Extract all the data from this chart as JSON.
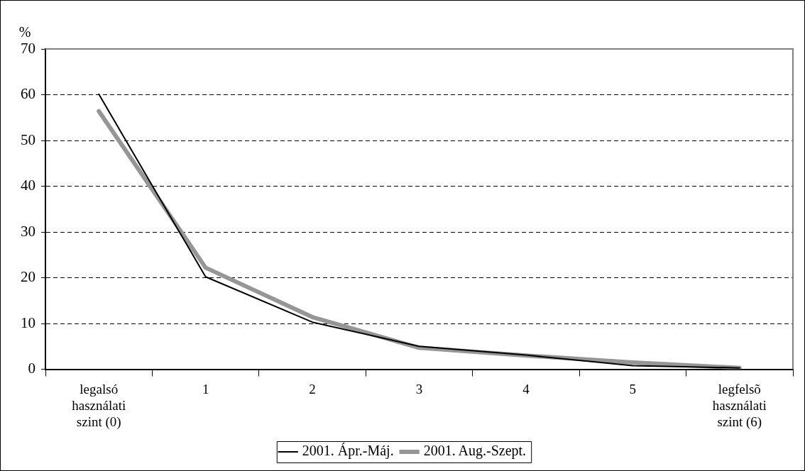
{
  "chart_data": {
    "type": "line",
    "ylabel": "%",
    "categories": [
      "legalsó\nhasználati\nszint (0)",
      "1",
      "2",
      "3",
      "4",
      "5",
      "legfelsõ\nhasználati\nszint (6)"
    ],
    "series": [
      {
        "name": "2001. Ápr.-Máj.",
        "color": "#000000",
        "values": [
          60.1,
          20.2,
          10.3,
          5.0,
          3.1,
          0.8,
          0.3
        ]
      },
      {
        "name": "2001. Aug.-Szept.",
        "color": "#969696",
        "values": [
          56.4,
          22.2,
          11.4,
          4.7,
          3.0,
          1.5,
          0.3
        ]
      }
    ],
    "ylim": [
      0,
      70
    ],
    "yticks": [
      0,
      10,
      20,
      30,
      40,
      50,
      60,
      70
    ],
    "grid": "y",
    "legend": "bottom",
    "marker": "none",
    "line_style": "solid"
  }
}
